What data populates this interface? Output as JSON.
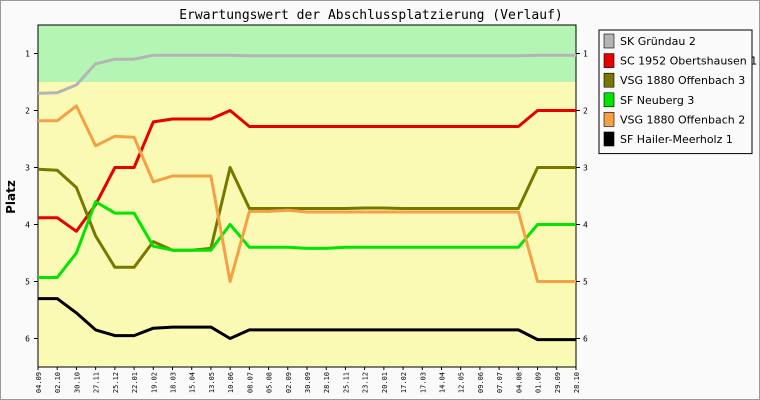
{
  "chart_data": {
    "type": "line",
    "title": "Erwartungswert der Abschlussplatzierung (Verlauf)",
    "xlabel": "",
    "ylabel": "Platz",
    "y_inverted": true,
    "ylim": [
      0.5,
      6.5
    ],
    "yticks": [
      1,
      2,
      3,
      4,
      5,
      6
    ],
    "grid": false,
    "legend_position": "right",
    "background_bands": [
      {
        "from": 0.5,
        "to": 1.5,
        "color": "#b4f5b4"
      },
      {
        "from": 1.5,
        "to": 6.5,
        "color": "#fafab4"
      }
    ],
    "x": [
      "04.09",
      "02.10",
      "30.10",
      "27.11",
      "25.12",
      "22.01",
      "19.02",
      "18.03",
      "15.04",
      "13.05",
      "10.06",
      "08.07",
      "05.08",
      "02.09",
      "30.09",
      "28.10",
      "25.11",
      "23.12",
      "20.01",
      "17.02",
      "17.03",
      "14.04",
      "12.05",
      "09.06",
      "07.07",
      "04.08",
      "01.09",
      "29.09",
      "28.10"
    ],
    "series": [
      {
        "name": "SK Gründau 2",
        "color": "#b4b4b4",
        "values": [
          1.7,
          1.69,
          1.55,
          1.18,
          1.1,
          1.1,
          1.03,
          1.03,
          1.03,
          1.03,
          1.03,
          1.04,
          1.04,
          1.04,
          1.04,
          1.04,
          1.04,
          1.04,
          1.04,
          1.04,
          1.04,
          1.04,
          1.04,
          1.04,
          1.04,
          1.04,
          1.03,
          1.03,
          1.03
        ]
      },
      {
        "name": "SC 1952 Obertshausen 1",
        "color": "#e60000",
        "values": [
          3.88,
          3.88,
          4.12,
          3.65,
          3.0,
          3.0,
          2.2,
          2.15,
          2.15,
          2.15,
          2.0,
          2.28,
          2.28,
          2.28,
          2.28,
          2.28,
          2.28,
          2.28,
          2.28,
          2.28,
          2.28,
          2.28,
          2.28,
          2.28,
          2.28,
          2.28,
          2.0,
          2.0,
          2.0
        ]
      },
      {
        "name": "VSG 1880 Offenbach 3",
        "color": "#787800",
        "values": [
          3.03,
          3.05,
          3.35,
          4.2,
          4.75,
          4.75,
          4.3,
          4.45,
          4.45,
          4.42,
          3.0,
          3.72,
          3.72,
          3.72,
          3.72,
          3.72,
          3.72,
          3.71,
          3.71,
          3.72,
          3.72,
          3.72,
          3.72,
          3.72,
          3.72,
          3.72,
          3.0,
          3.0,
          3.0
        ]
      },
      {
        "name": "SF Neuberg 3",
        "color": "#00e600",
        "values": [
          4.93,
          4.93,
          4.5,
          3.6,
          3.8,
          3.8,
          4.38,
          4.45,
          4.45,
          4.45,
          4.0,
          4.4,
          4.4,
          4.4,
          4.42,
          4.42,
          4.4,
          4.4,
          4.4,
          4.4,
          4.4,
          4.4,
          4.4,
          4.4,
          4.4,
          4.4,
          4.0,
          4.0,
          4.0
        ]
      },
      {
        "name": "VSG 1880 Offenbach 2",
        "color": "#f5a046",
        "values": [
          2.18,
          2.18,
          1.92,
          2.62,
          2.45,
          2.47,
          3.25,
          3.15,
          3.15,
          3.15,
          5.0,
          3.77,
          3.77,
          3.75,
          3.78,
          3.78,
          3.78,
          3.78,
          3.78,
          3.78,
          3.78,
          3.78,
          3.78,
          3.78,
          3.78,
          3.78,
          5.0,
          5.0,
          5.0
        ]
      },
      {
        "name": "SF Hailer-Meerholz 1",
        "color": "#000000",
        "values": [
          5.3,
          5.3,
          5.55,
          5.85,
          5.95,
          5.95,
          5.82,
          5.8,
          5.8,
          5.8,
          6.0,
          5.85,
          5.85,
          5.85,
          5.85,
          5.85,
          5.85,
          5.85,
          5.85,
          5.85,
          5.85,
          5.85,
          5.85,
          5.85,
          5.85,
          5.85,
          6.02,
          6.02,
          6.02
        ]
      }
    ]
  }
}
